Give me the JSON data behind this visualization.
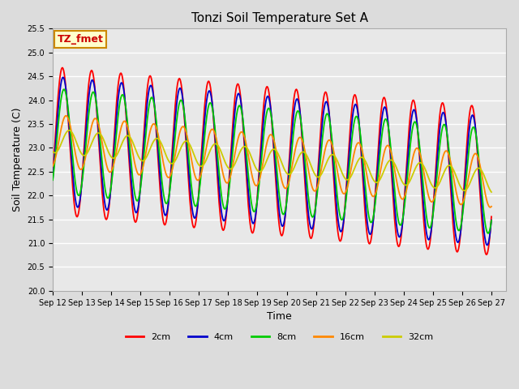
{
  "title": "Tonzi Soil Temperature Set A",
  "xlabel": "Time",
  "ylabel": "Soil Temperature (C)",
  "ylim": [
    20.0,
    25.5
  ],
  "yticks": [
    20.0,
    20.5,
    21.0,
    21.5,
    22.0,
    22.5,
    23.0,
    23.5,
    24.0,
    24.5,
    25.0,
    25.5
  ],
  "x_start_day": 12,
  "x_end_day": 27,
  "x_tick_days": [
    12,
    13,
    14,
    15,
    16,
    17,
    18,
    19,
    20,
    21,
    22,
    23,
    24,
    25,
    26,
    27
  ],
  "series_colors": [
    "#ff0000",
    "#0000cc",
    "#00cc00",
    "#ff8800",
    "#cccc00"
  ],
  "series_labels": [
    "2cm",
    "4cm",
    "8cm",
    "16cm",
    "32cm"
  ],
  "line_widths": [
    1.3,
    1.3,
    1.3,
    1.3,
    1.3
  ],
  "annotation_text": "TZ_fmet",
  "annotation_bg": "#ffffcc",
  "annotation_border": "#cc8800",
  "plot_bg": "#e8e8e8",
  "grid_color": "#ffffff",
  "grid_linewidth": 1.0,
  "title_fontsize": 11,
  "axis_label_fontsize": 9,
  "tick_fontsize": 7,
  "legend_fontsize": 8,
  "amp_2": 1.55,
  "amp_4": 1.35,
  "amp_8": 1.1,
  "amp_16": 0.55,
  "amp_32": 0.25,
  "base_start": 23.15,
  "base_end": 22.3,
  "phase_2": 0.5,
  "phase_4": 0.65,
  "phase_8": 0.85,
  "phase_16": 1.3,
  "phase_32": 2.0
}
